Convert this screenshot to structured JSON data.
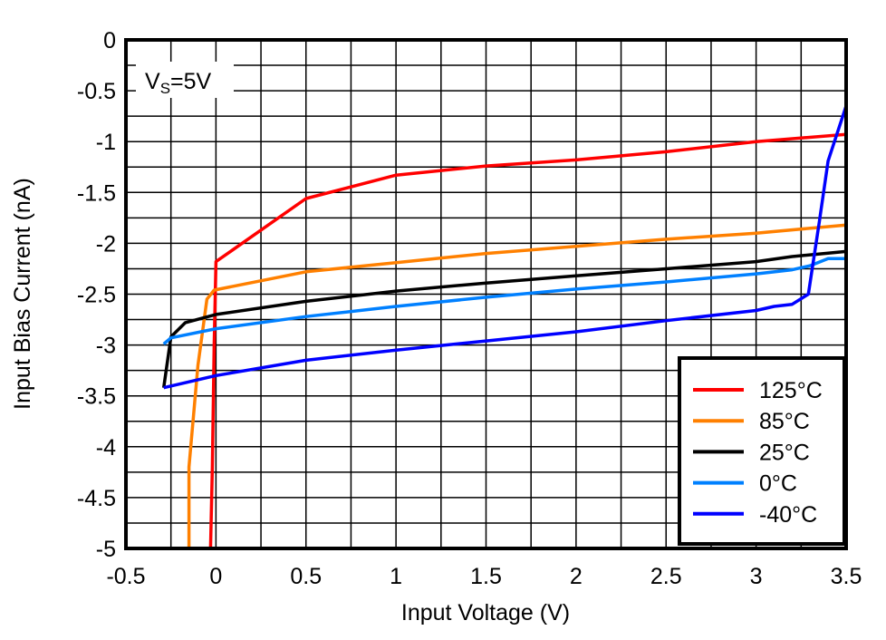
{
  "chart_data": {
    "type": "line",
    "title": "",
    "xlabel": "Input Voltage (V)",
    "ylabel": "Input Bias Current (nA)",
    "xlim": [
      -0.5,
      3.5
    ],
    "ylim": [
      -5,
      0
    ],
    "xticks": [
      "-0.5",
      "0",
      "0.5",
      "1",
      "1.5",
      "2",
      "2.5",
      "3",
      "3.5"
    ],
    "yticks": [
      "0",
      "-0.5",
      "-1",
      "-1.5",
      "-2",
      "-2.5",
      "-3",
      "-3.5",
      "-4",
      "-4.5",
      "-5"
    ],
    "grid": true,
    "annotation": {
      "main": "V",
      "sub": "S",
      "rest": "=5V"
    },
    "legend_placement": "bottom-right",
    "series": [
      {
        "name": "125°C",
        "color": "#ff0000",
        "points": [
          [
            -0.03,
            -5
          ],
          [
            -0.02,
            -4.2
          ],
          [
            -0.01,
            -3.0
          ],
          [
            0.0,
            -2.18
          ],
          [
            0.5,
            -1.56
          ],
          [
            1.0,
            -1.33
          ],
          [
            1.5,
            -1.24
          ],
          [
            2.0,
            -1.18
          ],
          [
            2.5,
            -1.1
          ],
          [
            3.0,
            -1.0
          ],
          [
            3.5,
            -0.93
          ]
        ]
      },
      {
        "name": "85°C",
        "color": "#ff8000",
        "points": [
          [
            -0.15,
            -5
          ],
          [
            -0.15,
            -4.2
          ],
          [
            -0.1,
            -3.2
          ],
          [
            -0.05,
            -2.55
          ],
          [
            -0.01,
            -2.46
          ],
          [
            0.5,
            -2.28
          ],
          [
            1.0,
            -2.19
          ],
          [
            1.5,
            -2.1
          ],
          [
            2.0,
            -2.03
          ],
          [
            2.5,
            -1.96
          ],
          [
            3.0,
            -1.9
          ],
          [
            3.5,
            -1.82
          ]
        ]
      },
      {
        "name": "25°C",
        "color": "#000000",
        "points": [
          [
            -0.29,
            -3.42
          ],
          [
            -0.25,
            -2.92
          ],
          [
            -0.17,
            -2.78
          ],
          [
            0.0,
            -2.7
          ],
          [
            0.5,
            -2.57
          ],
          [
            1.0,
            -2.47
          ],
          [
            1.5,
            -2.39
          ],
          [
            2.0,
            -2.32
          ],
          [
            2.5,
            -2.25
          ],
          [
            3.0,
            -2.18
          ],
          [
            3.2,
            -2.13
          ],
          [
            3.5,
            -2.08
          ]
        ]
      },
      {
        "name": "0°C",
        "color": "#0080ff",
        "points": [
          [
            -0.29,
            -2.99
          ],
          [
            -0.25,
            -2.93
          ],
          [
            0.0,
            -2.84
          ],
          [
            0.5,
            -2.72
          ],
          [
            1.0,
            -2.62
          ],
          [
            1.5,
            -2.53
          ],
          [
            2.0,
            -2.45
          ],
          [
            2.5,
            -2.38
          ],
          [
            3.0,
            -2.3
          ],
          [
            3.2,
            -2.26
          ],
          [
            3.3,
            -2.22
          ],
          [
            3.4,
            -2.15
          ],
          [
            3.5,
            -2.15
          ]
        ]
      },
      {
        "name": "-40°C",
        "color": "#0000ff",
        "points": [
          [
            -0.29,
            -3.42
          ],
          [
            0.0,
            -3.3
          ],
          [
            0.5,
            -3.15
          ],
          [
            1.0,
            -3.05
          ],
          [
            1.5,
            -2.96
          ],
          [
            2.0,
            -2.87
          ],
          [
            2.5,
            -2.76
          ],
          [
            3.0,
            -2.66
          ],
          [
            3.1,
            -2.62
          ],
          [
            3.2,
            -2.6
          ],
          [
            3.29,
            -2.5
          ],
          [
            3.35,
            -1.8
          ],
          [
            3.4,
            -1.19
          ],
          [
            3.5,
            -0.65
          ]
        ]
      }
    ]
  }
}
